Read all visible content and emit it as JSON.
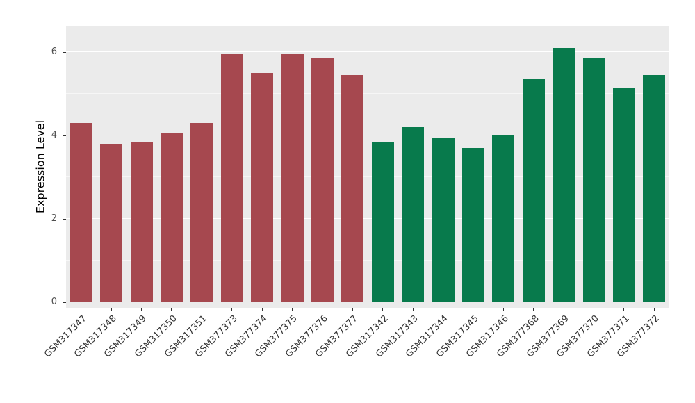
{
  "chart_data": {
    "type": "bar",
    "title": "",
    "xlabel": "",
    "ylabel": "Expression Level",
    "ylim": [
      0,
      6.6
    ],
    "yticks": [
      0,
      2,
      4,
      6
    ],
    "minor_ticks": [
      1,
      3,
      5
    ],
    "grid": "on",
    "legend": "none",
    "panel_background": "#EBEBEB",
    "categories": [
      "GSM317347",
      "GSM317348",
      "GSM317349",
      "GSM317350",
      "GSM317351",
      "GSM377373",
      "GSM377374",
      "GSM377375",
      "GSM377376",
      "GSM377377",
      "GSM317342",
      "GSM317343",
      "GSM317344",
      "GSM317345",
      "GSM317346",
      "GSM377368",
      "GSM377369",
      "GSM377370",
      "GSM377371",
      "GSM377372"
    ],
    "values": [
      4.3,
      3.8,
      3.85,
      4.05,
      4.3,
      5.95,
      5.5,
      5.95,
      5.85,
      5.45,
      3.85,
      4.2,
      3.95,
      3.7,
      4.0,
      5.35,
      6.1,
      5.85,
      5.15,
      5.45
    ],
    "bar_colors": [
      "#A6484F",
      "#A6484F",
      "#A6484F",
      "#A6484F",
      "#A6484F",
      "#A6484F",
      "#A6484F",
      "#A6484F",
      "#A6484F",
      "#A6484F",
      "#087A4C",
      "#087A4C",
      "#087A4C",
      "#087A4C",
      "#087A4C",
      "#087A4C",
      "#087A4C",
      "#087A4C",
      "#087A4C",
      "#087A4C"
    ],
    "group_colors": {
      "group1": "#A6484F",
      "group2": "#087A4C"
    }
  }
}
